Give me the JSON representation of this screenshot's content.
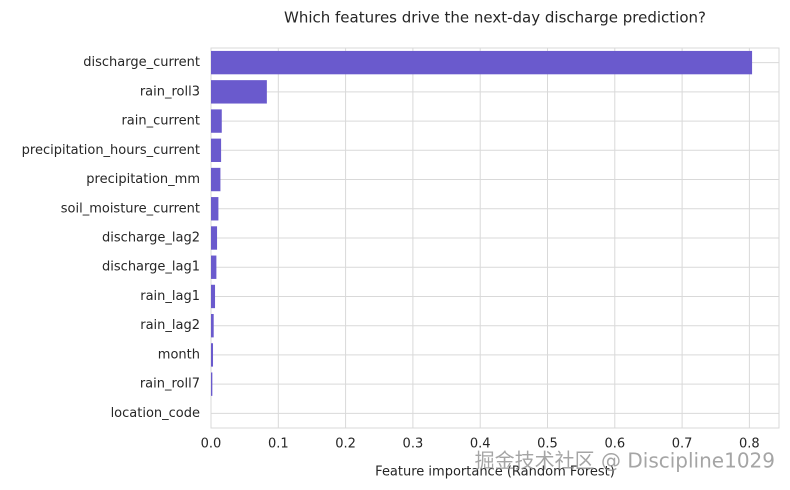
{
  "chart_data": {
    "type": "barh",
    "title": "Which features drive the next-day discharge prediction?",
    "x_label": "Feature importance (Random Forest)",
    "categories": [
      "discharge_current",
      "rain_roll3",
      "rain_current",
      "precipitation_hours_current",
      "precipitation_mm",
      "soil_moisture_current",
      "discharge_lag2",
      "discharge_lag1",
      "rain_lag1",
      "rain_lag2",
      "month",
      "rain_roll7",
      "location_code"
    ],
    "values": [
      0.804,
      0.083,
      0.016,
      0.015,
      0.014,
      0.011,
      0.009,
      0.008,
      0.006,
      0.004,
      0.003,
      0.002,
      0.0
    ],
    "color": "#6a5acd",
    "xlim": [
      0,
      0.844
    ],
    "xticks": [
      {
        "value": 0,
        "label": "0.0"
      },
      0.1,
      0.2,
      0.3,
      0.4,
      0.5,
      0.6,
      0.7,
      0.8
    ],
    "grid": true,
    "watermark": "掘金技术社区 @ Discipline1029"
  }
}
